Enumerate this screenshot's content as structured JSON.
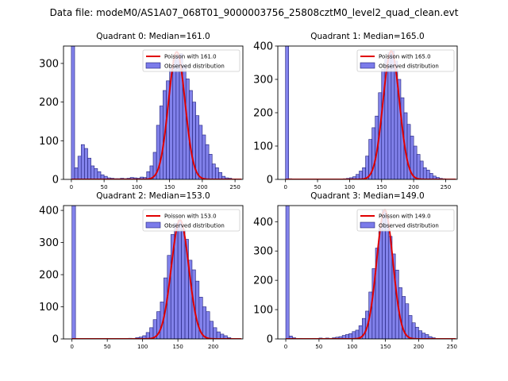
{
  "figure_title": "Data file: modeM0/AS1A07_068T01_9000003756_25808cztM0_level2_quad_clean.evt",
  "colors": {
    "bar_fill": "#7b7bea",
    "bar_edge": "#1f1f7a",
    "poisson_line": "#e00000",
    "axes": "#000000"
  },
  "chart_data": [
    {
      "type": "bar",
      "title": "Quadrant 0: Median=161.0",
      "xlim": [
        -12,
        262
      ],
      "ylim": [
        0,
        345
      ],
      "xticks": [
        0,
        50,
        100,
        150,
        200,
        250
      ],
      "yticks": [
        0,
        100,
        200,
        300
      ],
      "bin_width": 5,
      "bins": [
        [
          0,
          345
        ],
        [
          5,
          30
        ],
        [
          10,
          60
        ],
        [
          15,
          90
        ],
        [
          20,
          80
        ],
        [
          25,
          55
        ],
        [
          30,
          35
        ],
        [
          35,
          28
        ],
        [
          40,
          20
        ],
        [
          45,
          12
        ],
        [
          50,
          8
        ],
        [
          55,
          4
        ],
        [
          60,
          3
        ],
        [
          65,
          2
        ],
        [
          70,
          2
        ],
        [
          75,
          3
        ],
        [
          80,
          2
        ],
        [
          85,
          3
        ],
        [
          90,
          5
        ],
        [
          95,
          4
        ],
        [
          100,
          3
        ],
        [
          105,
          6
        ],
        [
          110,
          5
        ],
        [
          115,
          20
        ],
        [
          120,
          35
        ],
        [
          125,
          70
        ],
        [
          130,
          140
        ],
        [
          135,
          190
        ],
        [
          140,
          230
        ],
        [
          145,
          255
        ],
        [
          150,
          290
        ],
        [
          155,
          310
        ],
        [
          160,
          320
        ],
        [
          165,
          325
        ],
        [
          170,
          295
        ],
        [
          175,
          260
        ],
        [
          180,
          230
        ],
        [
          185,
          200
        ],
        [
          190,
          165
        ],
        [
          195,
          140
        ],
        [
          200,
          115
        ],
        [
          205,
          90
        ],
        [
          210,
          65
        ],
        [
          215,
          40
        ],
        [
          220,
          30
        ],
        [
          225,
          18
        ],
        [
          230,
          8
        ],
        [
          235,
          4
        ],
        [
          240,
          3
        ]
      ],
      "poisson_mean": 161.0,
      "poisson_peak": 330,
      "legend": [
        "Poisson with 161.0",
        "Observed distribution"
      ]
    },
    {
      "type": "bar",
      "title": "Quadrant 1: Median=165.0",
      "xlim": [
        -12,
        268
      ],
      "ylim": [
        0,
        400
      ],
      "xticks": [
        0,
        50,
        100,
        150,
        200,
        250
      ],
      "yticks": [
        0,
        100,
        200,
        300,
        400
      ],
      "bin_width": 5,
      "bins": [
        [
          0,
          400
        ],
        [
          5,
          2
        ],
        [
          50,
          1
        ],
        [
          80,
          1
        ],
        [
          90,
          2
        ],
        [
          95,
          3
        ],
        [
          100,
          5
        ],
        [
          105,
          8
        ],
        [
          110,
          15
        ],
        [
          115,
          25
        ],
        [
          120,
          35
        ],
        [
          125,
          70
        ],
        [
          130,
          120
        ],
        [
          135,
          155
        ],
        [
          140,
          190
        ],
        [
          145,
          260
        ],
        [
          150,
          330
        ],
        [
          155,
          360
        ],
        [
          160,
          380
        ],
        [
          165,
          385
        ],
        [
          170,
          355
        ],
        [
          175,
          300
        ],
        [
          180,
          245
        ],
        [
          185,
          200
        ],
        [
          190,
          165
        ],
        [
          195,
          130
        ],
        [
          200,
          100
        ],
        [
          205,
          75
        ],
        [
          210,
          55
        ],
        [
          215,
          35
        ],
        [
          220,
          28
        ],
        [
          225,
          18
        ],
        [
          230,
          10
        ],
        [
          235,
          6
        ],
        [
          240,
          3
        ],
        [
          245,
          2
        ],
        [
          250,
          1
        ]
      ],
      "poisson_mean": 165.0,
      "poisson_peak": 385,
      "legend": [
        "Poisson with 165.0",
        "Observed distribution"
      ]
    },
    {
      "type": "bar",
      "title": "Quadrant 2: Median=153.0",
      "xlim": [
        -12,
        242
      ],
      "ylim": [
        0,
        415
      ],
      "xticks": [
        0,
        50,
        100,
        150,
        200
      ],
      "yticks": [
        0,
        100,
        200,
        300,
        400
      ],
      "bin_width": 5,
      "bins": [
        [
          0,
          415
        ],
        [
          50,
          1
        ],
        [
          80,
          2
        ],
        [
          90,
          4
        ],
        [
          95,
          6
        ],
        [
          100,
          10
        ],
        [
          105,
          20
        ],
        [
          110,
          35
        ],
        [
          115,
          60
        ],
        [
          120,
          85
        ],
        [
          125,
          115
        ],
        [
          130,
          190
        ],
        [
          135,
          260
        ],
        [
          140,
          325
        ],
        [
          145,
          360
        ],
        [
          150,
          370
        ],
        [
          155,
          340
        ],
        [
          160,
          310
        ],
        [
          165,
          245
        ],
        [
          170,
          215
        ],
        [
          175,
          180
        ],
        [
          180,
          130
        ],
        [
          185,
          100
        ],
        [
          190,
          85
        ],
        [
          195,
          55
        ],
        [
          200,
          35
        ],
        [
          205,
          22
        ],
        [
          210,
          15
        ],
        [
          215,
          10
        ],
        [
          220,
          4
        ]
      ],
      "poisson_mean": 153.0,
      "poisson_peak": 370,
      "legend": [
        "Poisson with 153.0",
        "Observed distribution"
      ]
    },
    {
      "type": "bar",
      "title": "Quadrant 3: Median=149.0",
      "xlim": [
        -12,
        258
      ],
      "ylim": [
        0,
        455
      ],
      "xticks": [
        0,
        50,
        100,
        150,
        200,
        250
      ],
      "yticks": [
        0,
        100,
        200,
        300,
        400
      ],
      "bin_width": 5,
      "bins": [
        [
          0,
          455
        ],
        [
          5,
          10
        ],
        [
          10,
          4
        ],
        [
          20,
          2
        ],
        [
          40,
          2
        ],
        [
          50,
          3
        ],
        [
          60,
          3
        ],
        [
          70,
          4
        ],
        [
          75,
          6
        ],
        [
          80,
          8
        ],
        [
          85,
          12
        ],
        [
          90,
          15
        ],
        [
          95,
          18
        ],
        [
          100,
          25
        ],
        [
          105,
          30
        ],
        [
          110,
          45
        ],
        [
          115,
          70
        ],
        [
          120,
          95
        ],
        [
          125,
          160
        ],
        [
          130,
          240
        ],
        [
          135,
          310
        ],
        [
          140,
          380
        ],
        [
          145,
          440
        ],
        [
          150,
          410
        ],
        [
          155,
          350
        ],
        [
          160,
          290
        ],
        [
          165,
          235
        ],
        [
          170,
          175
        ],
        [
          175,
          145
        ],
        [
          180,
          120
        ],
        [
          185,
          80
        ],
        [
          190,
          55
        ],
        [
          195,
          40
        ],
        [
          200,
          28
        ],
        [
          205,
          20
        ],
        [
          210,
          15
        ],
        [
          215,
          8
        ],
        [
          220,
          4
        ]
      ],
      "poisson_mean": 149.0,
      "poisson_peak": 440,
      "legend": [
        "Poisson with 149.0",
        "Observed distribution"
      ]
    }
  ]
}
